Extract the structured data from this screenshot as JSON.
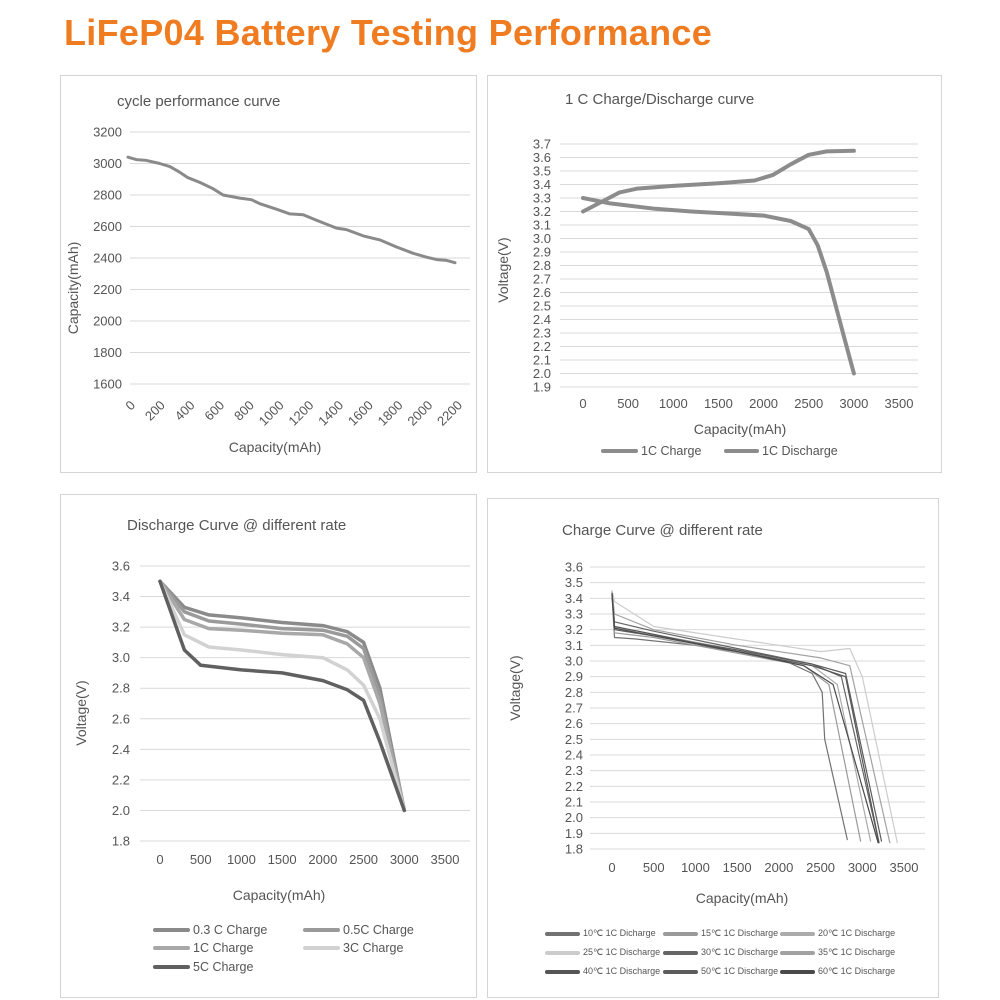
{
  "title": "LiFeP04 Battery Testing Performance",
  "chart_data": [
    {
      "type": "line",
      "title": "cycle performance curve",
      "xlabel": "Capacity(mAh)",
      "ylabel": "Capacity(mAh)",
      "xlim": [
        0,
        2200
      ],
      "ylim": [
        1600,
        3200
      ],
      "xticks": [
        0,
        200,
        400,
        600,
        800,
        1000,
        1200,
        1400,
        1600,
        1800,
        2000,
        2200
      ],
      "yticks": [
        1600,
        1800,
        2000,
        2200,
        2400,
        2600,
        2800,
        3000,
        3200
      ],
      "grid": "horizontal",
      "legend": "none",
      "series": [
        {
          "color": "#8a8a8a",
          "points": [
            [
              0,
              3040
            ],
            [
              56,
              3025
            ],
            [
              123,
              3020
            ],
            [
              213,
              3000
            ],
            [
              281,
              2980
            ],
            [
              348,
              2945
            ],
            [
              404,
              2910
            ],
            [
              483,
              2880
            ],
            [
              572,
              2840
            ],
            [
              640,
              2800
            ],
            [
              752,
              2780
            ],
            [
              831,
              2770
            ],
            [
              887,
              2745
            ],
            [
              999,
              2710
            ],
            [
              1089,
              2680
            ],
            [
              1179,
              2675
            ],
            [
              1268,
              2640
            ],
            [
              1403,
              2590
            ],
            [
              1470,
              2580
            ],
            [
              1583,
              2540
            ],
            [
              1695,
              2515
            ],
            [
              1807,
              2470
            ],
            [
              1919,
              2430
            ],
            [
              2009,
              2405
            ],
            [
              2077,
              2390
            ],
            [
              2144,
              2385
            ],
            [
              2200,
              2370
            ]
          ]
        }
      ]
    },
    {
      "type": "line",
      "title": "1 C Charge/Discharge curve",
      "xlabel": "Capacity(mAh)",
      "ylabel": "Voltage(V)",
      "xlim": [
        0,
        3500
      ],
      "ylim": [
        1.9,
        3.7
      ],
      "xticks": [
        0,
        500,
        1000,
        1500,
        2000,
        2500,
        3000,
        3500
      ],
      "yticks": [
        "1.9",
        "2.0",
        "2.1",
        "2.2",
        "2.3",
        "2.4",
        "2.5",
        "2.6",
        "2.7",
        "2.8",
        "2.9",
        "3.0",
        "3.1",
        "3.2",
        "3.3",
        "3.4",
        "3.5",
        "3.6",
        "3.7"
      ],
      "grid": "horizontal",
      "legend": "bottom",
      "series": [
        {
          "name": "1C Charge",
          "color": "#8c8c8c",
          "points": [
            [
              0,
              3.2
            ],
            [
              200,
              3.27
            ],
            [
              400,
              3.34
            ],
            [
              600,
              3.37
            ],
            [
              1000,
              3.39
            ],
            [
              1500,
              3.41
            ],
            [
              1900,
              3.43
            ],
            [
              2100,
              3.47
            ],
            [
              2300,
              3.55
            ],
            [
              2500,
              3.62
            ],
            [
              2700,
              3.645
            ],
            [
              3000,
              3.65
            ]
          ]
        },
        {
          "name": "1C Discharge",
          "color": "#8c8c8c",
          "points": [
            [
              0,
              3.3
            ],
            [
              300,
              3.26
            ],
            [
              800,
              3.22
            ],
            [
              1200,
              3.2
            ],
            [
              1600,
              3.185
            ],
            [
              2000,
              3.17
            ],
            [
              2300,
              3.13
            ],
            [
              2500,
              3.07
            ],
            [
              2600,
              2.95
            ],
            [
              2700,
              2.75
            ],
            [
              2800,
              2.5
            ],
            [
              2900,
              2.25
            ],
            [
              3000,
              2.0
            ]
          ]
        }
      ]
    },
    {
      "type": "line",
      "title": "Discharge Curve @ different rate",
      "xlabel": "Capacity(mAh)",
      "ylabel": "Voltage(V)",
      "xlim": [
        0,
        3500
      ],
      "ylim": [
        1.8,
        3.6
      ],
      "xticks": [
        0,
        500,
        1000,
        1500,
        2000,
        2500,
        3000,
        3500
      ],
      "yticks": [
        "1.8",
        "2.0",
        "2.2",
        "2.4",
        "2.6",
        "2.8",
        "3.0",
        "3.2",
        "3.4",
        "3.6"
      ],
      "grid": "horizontal",
      "legend": "bottom",
      "series": [
        {
          "name": "0.3 C Charge",
          "color": "#8a8a8a",
          "points": [
            [
              0,
              3.5
            ],
            [
              300,
              3.33
            ],
            [
              600,
              3.28
            ],
            [
              1000,
              3.26
            ],
            [
              1500,
              3.23
            ],
            [
              2000,
              3.21
            ],
            [
              2300,
              3.17
            ],
            [
              2500,
              3.1
            ],
            [
              2700,
              2.8
            ],
            [
              3000,
              2.0
            ]
          ]
        },
        {
          "name": "0.5C Charge",
          "color": "#9a9a9a",
          "points": [
            [
              0,
              3.5
            ],
            [
              300,
              3.3
            ],
            [
              600,
              3.24
            ],
            [
              1000,
              3.22
            ],
            [
              1500,
              3.19
            ],
            [
              2000,
              3.18
            ],
            [
              2300,
              3.14
            ],
            [
              2500,
              3.06
            ],
            [
              2700,
              2.75
            ],
            [
              3000,
              2.0
            ]
          ]
        },
        {
          "name": "1C Charge",
          "color": "#a8a8a8",
          "points": [
            [
              0,
              3.5
            ],
            [
              300,
              3.25
            ],
            [
              600,
              3.19
            ],
            [
              1000,
              3.18
            ],
            [
              1500,
              3.16
            ],
            [
              2000,
              3.15
            ],
            [
              2300,
              3.09
            ],
            [
              2500,
              3.0
            ],
            [
              2700,
              2.7
            ],
            [
              3000,
              2.0
            ]
          ]
        },
        {
          "name": "3C Charge",
          "color": "#d2d2d2",
          "points": [
            [
              0,
              3.5
            ],
            [
              300,
              3.15
            ],
            [
              600,
              3.07
            ],
            [
              1000,
              3.05
            ],
            [
              1500,
              3.02
            ],
            [
              2000,
              3.0
            ],
            [
              2300,
              2.92
            ],
            [
              2500,
              2.82
            ],
            [
              2700,
              2.6
            ],
            [
              3000,
              2.0
            ]
          ]
        },
        {
          "name": "5C Charge",
          "color": "#606060",
          "points": [
            [
              0,
              3.5
            ],
            [
              300,
              3.05
            ],
            [
              500,
              2.95
            ],
            [
              1000,
              2.92
            ],
            [
              1500,
              2.9
            ],
            [
              2000,
              2.85
            ],
            [
              2300,
              2.79
            ],
            [
              2500,
              2.72
            ],
            [
              2700,
              2.45
            ],
            [
              3000,
              2.0
            ]
          ]
        }
      ]
    },
    {
      "type": "line",
      "title": "Charge Curve @ different rate",
      "xlabel": "Capacity(mAh)",
      "ylabel": "Voltage(V)",
      "xlim": [
        0,
        3500
      ],
      "ylim": [
        1.8,
        3.6
      ],
      "xticks": [
        0,
        500,
        1000,
        1500,
        2000,
        2500,
        3000,
        3500
      ],
      "yticks": [
        "1.8",
        "1.9",
        "2.0",
        "2.1",
        "2.2",
        "2.3",
        "2.4",
        "2.5",
        "2.6",
        "2.7",
        "2.8",
        "2.9",
        "3.0",
        "3.1",
        "3.2",
        "3.3",
        "3.4",
        "3.5",
        "3.6"
      ],
      "grid": "horizontal",
      "legend": "bottom",
      "series": [
        {
          "name": "10℃ 1C Dicharge",
          "color": "#727272",
          "points": [
            [
              0,
              3.42
            ],
            [
              30,
              3.15
            ],
            [
              300,
              3.14
            ],
            [
              1000,
              3.1
            ],
            [
              2000,
              3.02
            ],
            [
              2400,
              2.92
            ],
            [
              2520,
              2.8
            ],
            [
              2550,
              2.5
            ],
            [
              2820,
              1.86
            ]
          ]
        },
        {
          "name": "15℃ 1C Discharge",
          "color": "#9a9a9a",
          "points": [
            [
              0,
              3.42
            ],
            [
              30,
              3.18
            ],
            [
              500,
              3.15
            ],
            [
              1500,
              3.05
            ],
            [
              2300,
              2.97
            ],
            [
              2600,
              2.85
            ],
            [
              2980,
              1.85
            ]
          ]
        },
        {
          "name": "20℃ 1C Discharge",
          "color": "#ababab",
          "points": [
            [
              0,
              3.42
            ],
            [
              30,
              3.22
            ],
            [
              500,
              3.17
            ],
            [
              1500,
              3.07
            ],
            [
              2400,
              2.97
            ],
            [
              2700,
              2.85
            ],
            [
              3100,
              1.85
            ]
          ]
        },
        {
          "name": "25℃ 1C Discharge",
          "color": "#cccccc",
          "points": [
            [
              0,
              3.45
            ],
            [
              30,
              3.38
            ],
            [
              500,
              3.22
            ],
            [
              1500,
              3.14
            ],
            [
              2500,
              3.06
            ],
            [
              2850,
              3.08
            ],
            [
              3000,
              2.9
            ],
            [
              3420,
              1.84
            ]
          ]
        },
        {
          "name": "30℃ 1C Discharge",
          "color": "#666666",
          "points": [
            [
              0,
              3.42
            ],
            [
              30,
              3.25
            ],
            [
              500,
              3.19
            ],
            [
              1500,
              3.08
            ],
            [
              2400,
              2.98
            ],
            [
              2750,
              2.9
            ],
            [
              3200,
              1.84
            ]
          ]
        },
        {
          "name": "35℃ 1C Discharge",
          "color": "#a2a2a2",
          "points": [
            [
              0,
              3.44
            ],
            [
              30,
              3.3
            ],
            [
              500,
              3.2
            ],
            [
              1500,
              3.1
            ],
            [
              2500,
              3.02
            ],
            [
              2850,
              2.97
            ],
            [
              3330,
              1.84
            ]
          ]
        },
        {
          "name": "40℃ 1C Discharge",
          "color": "#555555",
          "points": [
            [
              0,
              3.43
            ],
            [
              30,
              3.22
            ],
            [
              500,
              3.17
            ],
            [
              1500,
              3.06
            ],
            [
              2400,
              2.97
            ],
            [
              2800,
              2.9
            ],
            [
              3200,
              1.84
            ]
          ]
        },
        {
          "name": "50℃ 1C Discharge",
          "color": "#5c5c5c",
          "points": [
            [
              0,
              3.43
            ],
            [
              30,
              3.2
            ],
            [
              500,
              3.16
            ],
            [
              1500,
              3.07
            ],
            [
              2400,
              2.98
            ],
            [
              2800,
              2.92
            ],
            [
              3230,
              1.85
            ]
          ]
        },
        {
          "name": "60℃ 1C Discharge",
          "color": "#4a4a4a",
          "points": [
            [
              0,
              3.43
            ],
            [
              30,
              3.21
            ],
            [
              500,
              3.16
            ],
            [
              1500,
              3.06
            ],
            [
              2300,
              2.97
            ],
            [
              2650,
              2.85
            ],
            [
              3190,
              1.84
            ]
          ]
        }
      ]
    }
  ]
}
